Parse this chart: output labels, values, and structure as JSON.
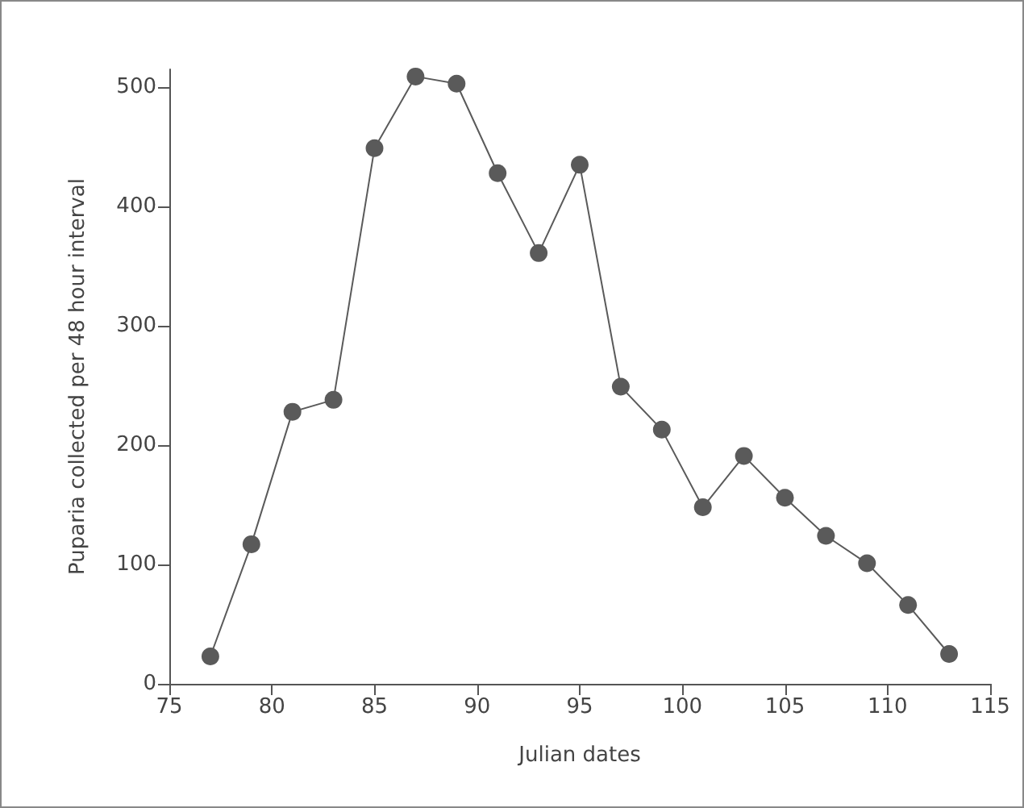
{
  "chart_data": {
    "type": "line",
    "xlabel": "Julian dates",
    "ylabel": "Puparia collected per 48 hour interval",
    "x": [
      77,
      79,
      81,
      83,
      85,
      87,
      89,
      91,
      93,
      95,
      97,
      99,
      101,
      103,
      105,
      107,
      109,
      111,
      113
    ],
    "values": [
      23,
      117,
      228,
      238,
      449,
      509,
      503,
      428,
      361,
      435,
      249,
      213,
      148,
      191,
      156,
      124,
      101,
      66,
      25
    ],
    "color": "#5a5a5a",
    "marker": "circle",
    "line_style": "solid",
    "grid": false,
    "xlim": [
      75,
      115
    ],
    "xticks": [
      75,
      80,
      85,
      90,
      95,
      100,
      105,
      110,
      115
    ],
    "ylim": [
      0,
      515
    ],
    "yticks": [
      0,
      100,
      200,
      300,
      400,
      500
    ]
  }
}
